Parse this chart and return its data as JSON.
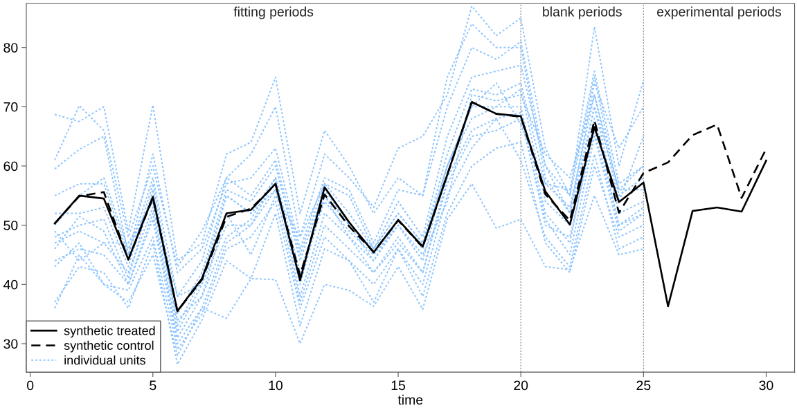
{
  "chart_data": {
    "type": "line",
    "xlabel": "time",
    "x": [
      1,
      2,
      3,
      4,
      5,
      6,
      7,
      8,
      9,
      10,
      11,
      12,
      13,
      14,
      15,
      16,
      17,
      18,
      19,
      20,
      21,
      22,
      23,
      24,
      25,
      26,
      27,
      28,
      29,
      30
    ],
    "xlim": [
      -0.16,
      31.16
    ],
    "xticks": [
      0,
      5,
      10,
      15,
      20,
      25,
      30
    ],
    "ylim": [
      25.2,
      87.4
    ],
    "yticks": [
      30,
      40,
      50,
      60,
      70,
      80
    ],
    "grid": false,
    "legend": "bottom left",
    "marker": "none",
    "ref_lines": [
      {
        "axis": "x",
        "value": 20,
        "color": "#999999",
        "line_style": "dotted"
      },
      {
        "axis": "x",
        "value": 25,
        "color": "#999999",
        "line_style": "dotted"
      }
    ],
    "annotations": [
      "fitting periods",
      "blank periods",
      "experimental periods"
    ],
    "series": [
      {
        "name": "individual units",
        "color": "#8cc4ff",
        "line_style": "dotted",
        "x": [
          1,
          2,
          3,
          4,
          5,
          6,
          7,
          8,
          9,
          10,
          11,
          12,
          13,
          14,
          15,
          16,
          17,
          18,
          19,
          20,
          21,
          22,
          23,
          24,
          25
        ],
        "values": [
          68.7,
          67.5,
          70,
          49,
          70.3,
          44,
          47,
          62,
          64,
          75,
          52,
          66,
          60,
          52,
          58,
          55,
          70,
          80,
          78,
          81,
          60,
          52,
          70,
          56,
          60
        ]
      },
      {
        "color": "#8cc4ff",
        "line_style": "dotted",
        "x": [
          1,
          2,
          3,
          4,
          5,
          6,
          7,
          8,
          9,
          10,
          11,
          12,
          13,
          14,
          15,
          16,
          17,
          18,
          19,
          20,
          21,
          22,
          23,
          24,
          25
        ],
        "values": [
          61,
          70.2,
          66,
          48,
          60,
          43,
          49,
          58,
          62,
          70,
          48,
          62,
          58,
          53,
          63,
          65,
          72,
          87,
          82,
          85,
          63,
          55,
          83.5,
          60,
          74.5
        ]
      },
      {
        "color": "#8cc4ff",
        "line_style": "dotted",
        "x": [
          1,
          2,
          3,
          4,
          5,
          6,
          7,
          8,
          9,
          10,
          11,
          12,
          13,
          14,
          15,
          16,
          17,
          18,
          19,
          20,
          21,
          22,
          23,
          24,
          25
        ],
        "values": [
          59.5,
          62.8,
          65,
          45,
          62,
          42,
          46,
          57,
          58,
          63,
          46,
          58,
          56,
          47,
          56,
          55,
          75,
          84,
          80,
          80,
          58,
          52,
          74,
          63,
          70
        ]
      },
      {
        "color": "#8cc4ff",
        "line_style": "dotted",
        "x": [
          1,
          2,
          3,
          4,
          5,
          6,
          7,
          8,
          9,
          10,
          11,
          12,
          13,
          14,
          15,
          16,
          17,
          18,
          19,
          20,
          21,
          22,
          23,
          24,
          25
        ],
        "values": [
          55,
          57,
          57,
          45,
          58,
          38,
          44,
          58,
          55,
          61,
          45,
          57,
          52,
          46,
          54,
          48,
          65,
          75,
          76,
          77,
          60,
          55,
          75,
          55,
          58
        ]
      },
      {
        "color": "#8cc4ff",
        "line_style": "dotted",
        "x": [
          1,
          2,
          3,
          4,
          5,
          6,
          7,
          8,
          9,
          10,
          11,
          12,
          13,
          14,
          15,
          16,
          17,
          18,
          19,
          20,
          21,
          22,
          23,
          24,
          25
        ],
        "values": [
          52,
          52,
          53,
          43,
          57,
          35,
          42,
          56,
          54,
          60,
          44,
          56,
          50,
          46,
          52,
          47,
          62,
          73,
          72,
          74,
          57,
          53,
          72,
          56,
          56
        ]
      },
      {
        "color": "#8cc4ff",
        "line_style": "dotted",
        "x": [
          1,
          2,
          3,
          4,
          5,
          6,
          7,
          8,
          9,
          10,
          11,
          12,
          13,
          14,
          15,
          16,
          17,
          18,
          19,
          20,
          21,
          22,
          23,
          24,
          25
        ],
        "values": [
          48,
          50,
          51,
          41,
          56,
          33,
          41,
          55,
          52,
          58,
          42,
          55,
          50,
          44,
          51,
          46,
          60,
          70,
          70,
          73,
          54,
          50,
          70,
          52,
          54
        ]
      },
      {
        "color": "#8cc4ff",
        "line_style": "dotted",
        "x": [
          1,
          2,
          3,
          4,
          5,
          6,
          7,
          8,
          9,
          10,
          11,
          12,
          13,
          14,
          15,
          16,
          17,
          18,
          19,
          20,
          21,
          22,
          23,
          24,
          25
        ],
        "values": [
          47,
          49,
          47,
          42,
          53,
          32,
          40,
          50,
          50,
          58,
          40,
          55,
          48,
          44,
          50,
          44,
          60,
          68,
          70,
          70,
          52,
          47,
          68,
          50,
          52
        ]
      },
      {
        "color": "#8cc4ff",
        "line_style": "dotted",
        "x": [
          1,
          2,
          3,
          4,
          5,
          6,
          7,
          8,
          9,
          10,
          11,
          12,
          13,
          14,
          15,
          16,
          17,
          18,
          19,
          20,
          21,
          22,
          23,
          24,
          25
        ],
        "values": [
          46,
          51.5,
          49,
          40,
          52,
          31,
          38,
          48,
          51,
          58,
          38,
          52,
          48,
          42,
          48,
          42,
          58,
          66,
          68,
          69,
          50,
          48,
          66,
          50,
          53
        ]
      },
      {
        "color": "#8cc4ff",
        "line_style": "dotted",
        "x": [
          1,
          2,
          3,
          4,
          5,
          6,
          7,
          8,
          9,
          10,
          11,
          12,
          13,
          14,
          15,
          16,
          17,
          18,
          19,
          20,
          21,
          22,
          23,
          24,
          25
        ],
        "values": [
          44,
          46,
          45,
          40,
          51,
          30,
          36,
          47,
          50,
          56,
          37,
          50,
          46,
          42,
          47,
          42,
          57,
          65,
          66,
          68,
          51,
          45,
          65,
          49,
          52
        ]
      },
      {
        "color": "#8cc4ff",
        "line_style": "dotted",
        "x": [
          1,
          2,
          3,
          4,
          5,
          6,
          7,
          8,
          9,
          10,
          11,
          12,
          13,
          14,
          15,
          16,
          17,
          18,
          19,
          20,
          21,
          22,
          23,
          24,
          25
        ],
        "values": [
          43,
          47,
          40,
          39,
          48,
          29,
          35,
          46,
          48,
          54,
          36,
          48,
          44,
          40,
          46,
          40,
          55,
          63,
          68,
          61,
          48,
          43,
          62,
          46,
          48
        ]
      },
      {
        "color": "#8cc4ff",
        "line_style": "dotted",
        "x": [
          1,
          2,
          3,
          4,
          5,
          6,
          7,
          8,
          9,
          10,
          11,
          12,
          13,
          14,
          15,
          16,
          17,
          18,
          19,
          20,
          21,
          22,
          23,
          24,
          25
        ],
        "values": [
          37,
          43,
          42,
          36,
          47,
          26.5,
          34,
          44,
          41,
          52,
          33,
          46,
          44,
          37,
          46,
          38,
          52,
          60,
          63,
          64,
          47,
          42,
          60,
          48,
          50
        ]
      },
      {
        "color": "#8cc4ff",
        "line_style": "dotted",
        "x": [
          1,
          2,
          3,
          4,
          5,
          6,
          7,
          8,
          9,
          10,
          11,
          12,
          13,
          14,
          15,
          16,
          17,
          18,
          19,
          20,
          21,
          22,
          23,
          24,
          25
        ],
        "values": [
          36,
          45,
          40,
          37,
          45,
          28,
          36,
          34.3,
          41,
          40.8,
          30,
          40,
          39,
          36.3,
          43,
          35.8,
          51,
          57,
          49.5,
          51,
          43,
          42.5,
          55,
          45,
          46
        ]
      },
      {
        "color": "#8cc4ff",
        "line_style": "dotted",
        "x": [
          1,
          2,
          3,
          4,
          5,
          6,
          7,
          8,
          9,
          10,
          11,
          12,
          13,
          14,
          15,
          16,
          17,
          18,
          19,
          20,
          21,
          22,
          23,
          24,
          25
        ],
        "values": [
          49,
          44,
          47,
          47,
          54,
          34,
          38,
          52,
          45,
          55,
          48,
          57,
          55,
          46,
          52,
          47,
          60,
          70,
          74,
          67,
          57,
          56,
          76,
          57,
          60
        ]
      },
      {
        "color": "#8cc4ff",
        "line_style": "dotted",
        "x": [
          1,
          2,
          3,
          4,
          5,
          6,
          7,
          8,
          9,
          10,
          11,
          12,
          13,
          14,
          15,
          16,
          17,
          18,
          19,
          20,
          21,
          22,
          23,
          24,
          25
        ],
        "values": [
          50,
          55,
          58,
          46,
          54,
          38,
          40,
          55,
          52,
          56,
          42,
          54,
          49,
          45,
          50,
          45,
          54,
          72,
          71,
          72,
          62,
          58,
          72,
          54,
          65
        ]
      },
      {
        "name": "synthetic treated",
        "color": "#000000",
        "line_style": "solid",
        "values": [
          50.3,
          55.0,
          54.5,
          44.2,
          54.8,
          35.5,
          41,
          52,
          52.6,
          57,
          40.7,
          56.4,
          50.5,
          45.4,
          50.9,
          46.4,
          58.5,
          70.8,
          68.8,
          68.4,
          55.7,
          50.1,
          66.6,
          53.9,
          57.2,
          36.3,
          52.4,
          53,
          52.3,
          60.9
        ]
      },
      {
        "name": "synthetic control",
        "color": "#000000",
        "line_style": "dashed",
        "values": [
          50.3,
          54.9,
          55.6,
          44.2,
          54.6,
          35.5,
          40.8,
          51.4,
          52.8,
          56.9,
          41.5,
          55.2,
          49.8,
          45.5,
          50.8,
          46.3,
          58.5,
          70.8,
          68.8,
          68.3,
          55.2,
          50.8,
          67.7,
          52.1,
          58.8,
          60.6,
          65.2,
          67.0,
          54.6,
          62.9
        ]
      }
    ]
  }
}
